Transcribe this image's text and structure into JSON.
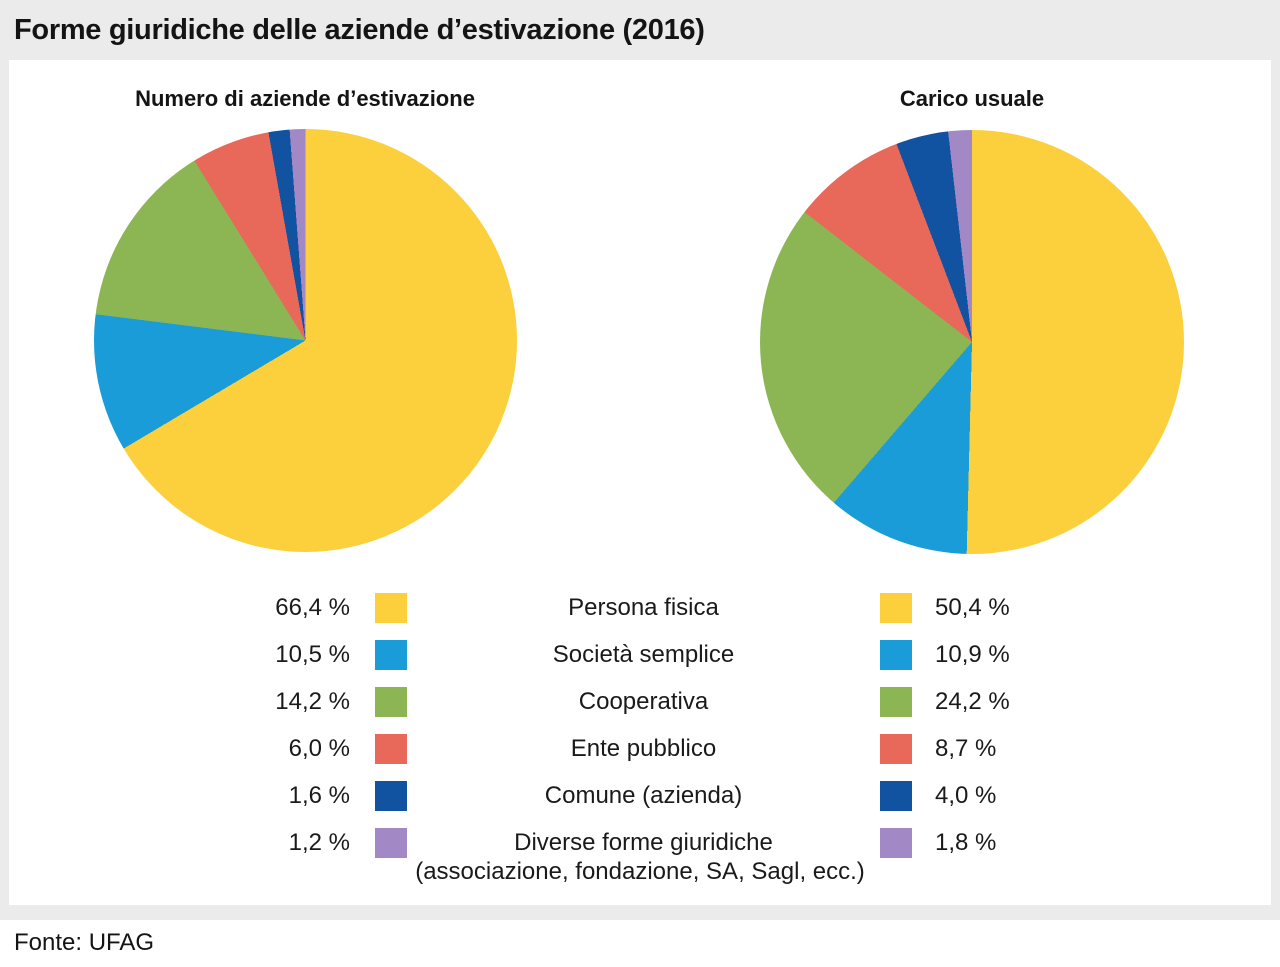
{
  "page": {
    "title": "Forme giuridiche delle aziende d’estivazione (2016)",
    "source": "Fonte: UFAG",
    "background_color": "#EBEBEB",
    "card_color": "#FFFFFF"
  },
  "palette": {
    "yellow": "#FBD03C",
    "light_blue": "#199CD8",
    "green": "#8CB654",
    "red": "#E8695A",
    "dark_blue": "#1152A1",
    "purple": "#A288C4"
  },
  "legend": {
    "rows": [
      {
        "label": "Persona fisica",
        "color": "#FBD03C",
        "left_pct": "66,4 %",
        "right_pct": "50,4 %"
      },
      {
        "label": "Società semplice",
        "color": "#199CD8",
        "left_pct": "10,5 %",
        "right_pct": "10,9 %"
      },
      {
        "label": "Cooperativa",
        "color": "#8CB654",
        "left_pct": "14,2 %",
        "right_pct": "24,2 %"
      },
      {
        "label": "Ente pubblico",
        "color": "#E8695A",
        "left_pct": "6,0 %",
        "right_pct": "8,7 %"
      },
      {
        "label": "Comune (azienda)",
        "color": "#1152A1",
        "left_pct": "1,6 %",
        "right_pct": "4,0 %"
      },
      {
        "label": "Diverse forme giuridiche",
        "sublabel": "(associazione, fondazione, SA, Sagl, ecc.)",
        "color": "#A288C4",
        "left_pct": "1,2 %",
        "right_pct": "1,8 %"
      }
    ]
  },
  "chart_data": [
    {
      "type": "pie",
      "title": "Numero di aziende d’estivazione",
      "categories": [
        "Persona fisica",
        "Società semplice",
        "Cooperativa",
        "Ente pubblico",
        "Comune (azienda)",
        "Diverse forme giuridiche (associazione, fondazione, SA, Sagl, ecc.)"
      ],
      "values": [
        66.4,
        10.5,
        14.2,
        6.0,
        1.6,
        1.2
      ],
      "unit": "%",
      "colors": [
        "#FBD03C",
        "#199CD8",
        "#8CB654",
        "#E8695A",
        "#1152A1",
        "#A288C4"
      ],
      "start_angle_deg": 0,
      "direction": "clockwise",
      "legend_position": "bottom-shared"
    },
    {
      "type": "pie",
      "title": "Carico usuale",
      "categories": [
        "Persona fisica",
        "Società semplice",
        "Cooperativa",
        "Ente pubblico",
        "Comune (azienda)",
        "Diverse forme giuridiche (associazione, fondazione, SA, Sagl, ecc.)"
      ],
      "values": [
        50.4,
        10.9,
        24.2,
        8.7,
        4.0,
        1.8
      ],
      "unit": "%",
      "colors": [
        "#FBD03C",
        "#199CD8",
        "#8CB654",
        "#E8695A",
        "#1152A1",
        "#A288C4"
      ],
      "start_angle_deg": 0,
      "direction": "clockwise",
      "legend_position": "bottom-shared"
    }
  ]
}
